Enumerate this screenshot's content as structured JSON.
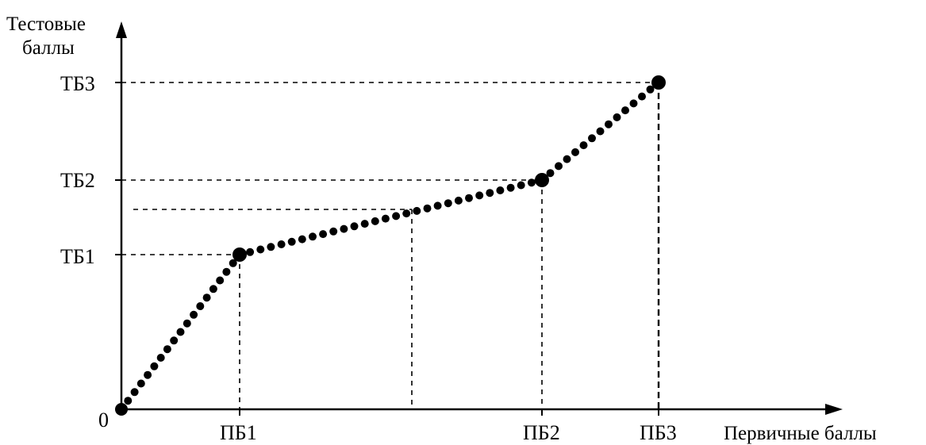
{
  "chart_data": {
    "type": "line",
    "ylabel_lines": [
      "Тестовые",
      "баллы"
    ],
    "xlabel": "Первичные баллы",
    "origin_label": "0",
    "x_ticks": [
      "ПБ1",
      "ПБ2",
      "ПБ3"
    ],
    "y_ticks": [
      "ТБ1",
      "ТБ2",
      "ТБ3"
    ],
    "x_units_note": "points on a qualitative scale; ПБ1..ПБ3 map to relative positions",
    "series": [
      {
        "points": [
          {
            "x": "0",
            "y": "0"
          },
          {
            "x": "ПБ1",
            "y": "ТБ1"
          },
          {
            "x": "ПБ2",
            "y": "ТБ2"
          },
          {
            "x": "ПБ3",
            "y": "ТБ3"
          }
        ]
      }
    ],
    "marker_style": "dotted line with filled circle markers",
    "line_color": "#000000"
  }
}
